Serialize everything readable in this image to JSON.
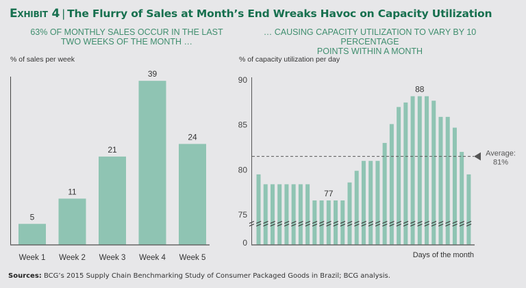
{
  "header": {
    "exhibit_label": "Exhibit 4",
    "separator": "|",
    "title": "The Flurry of Sales at Month’s End Wreaks Havoc on Capacity Utilization"
  },
  "colors": {
    "bar": "#8fc4b3",
    "title": "#17704f",
    "subtitle": "#3f8e6e",
    "axis": "#555555",
    "dashed": "#555555"
  },
  "chart_data": [
    {
      "type": "bar",
      "subtitle_line1": "63% OF MONTHLY SALES OCCUR IN THE LAST",
      "subtitle_line2": "TWO WEEKS OF THE MONTH …",
      "ylabel": "% of sales per week",
      "xlabel": "",
      "categories": [
        "Week 1",
        "Week 2",
        "Week 3",
        "Week 4",
        "Week 5"
      ],
      "values": [
        5,
        11,
        21,
        39,
        24
      ],
      "data_labels": [
        "5",
        "11",
        "21",
        "39",
        "24"
      ],
      "ylim": [
        0,
        40
      ],
      "grid": false
    },
    {
      "type": "bar",
      "subtitle_line1": "… CAUSING CAPACITY UTILIZATION TO VARY BY 10 PERCENTAGE",
      "subtitle_line2": "POINTS WITHIN A MONTH",
      "ylabel": "% of capacity utilization per day",
      "xlabel": "Days of the month",
      "y_ticks": [
        "90",
        "85",
        "80",
        "75",
        "0"
      ],
      "axis_break": true,
      "ylim_broken": [
        75,
        90
      ],
      "values": [
        79.5,
        78.4,
        78.4,
        78.4,
        78.4,
        78.4,
        78.4,
        78.4,
        76.6,
        76.6,
        76.6,
        76.6,
        76.6,
        78.6,
        79.9,
        81,
        81,
        81,
        83,
        85.1,
        87,
        87.5,
        88.2,
        88.2,
        88.2,
        87.7,
        85.9,
        85.9,
        84.7,
        82,
        79.5
      ],
      "annotations": [
        {
          "text": "77",
          "day": 11
        },
        {
          "text": "88",
          "day": 24
        }
      ],
      "average": {
        "value": 81.5,
        "label_line1": "Average:",
        "label_line2": "81%"
      },
      "grid": false
    }
  ],
  "footer": {
    "source_label": "Sources:",
    "source_text": " BCG’s 2015 Supply Chain Benchmarking Study of Consumer Packaged Goods in Brazil; BCG analysis."
  }
}
